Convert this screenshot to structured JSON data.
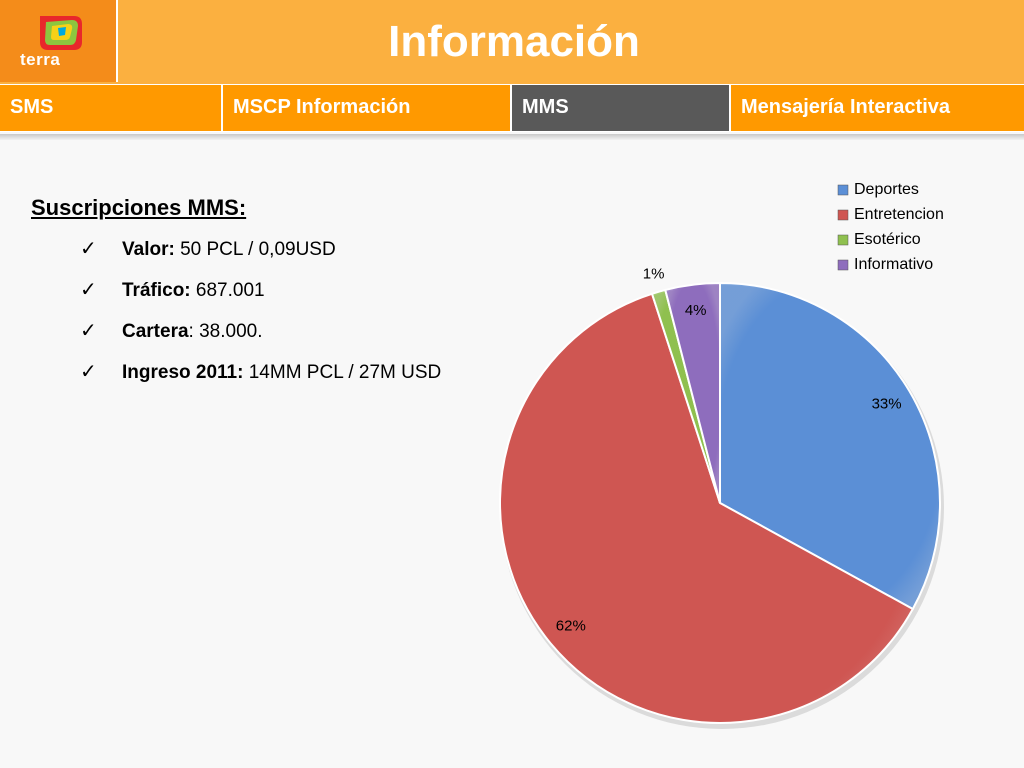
{
  "header": {
    "logo_text": "terra",
    "title": "Información"
  },
  "tabs": [
    {
      "label": "SMS",
      "active": false
    },
    {
      "label": "MSCP Información",
      "active": false
    },
    {
      "label": "MMS",
      "active": true
    },
    {
      "label": "Mensajería Interactiva",
      "active": false
    }
  ],
  "content": {
    "title": "Suscripciones MMS:",
    "bullets": [
      {
        "label": "Valor:",
        "value": " 50 PCL / 0,09USD"
      },
      {
        "label": "Tráfico:",
        "value": " 687.001"
      },
      {
        "label": "Cartera",
        "value": ": 38.000."
      },
      {
        "label": "Ingreso 2011:",
        "value": " 14MM PCL / 27M USD"
      }
    ]
  },
  "chart_data": {
    "type": "pie",
    "categories": [
      "Deportes",
      "Entretencion",
      "Esotérico",
      "Informativo"
    ],
    "values": [
      33,
      62,
      1,
      4
    ],
    "data_labels": [
      "33%",
      "62%",
      "1%",
      "4%"
    ],
    "colors": [
      "#5b8fd6",
      "#cf5652",
      "#8fc04f",
      "#8e6dbd"
    ],
    "legend_position": "top-right"
  }
}
